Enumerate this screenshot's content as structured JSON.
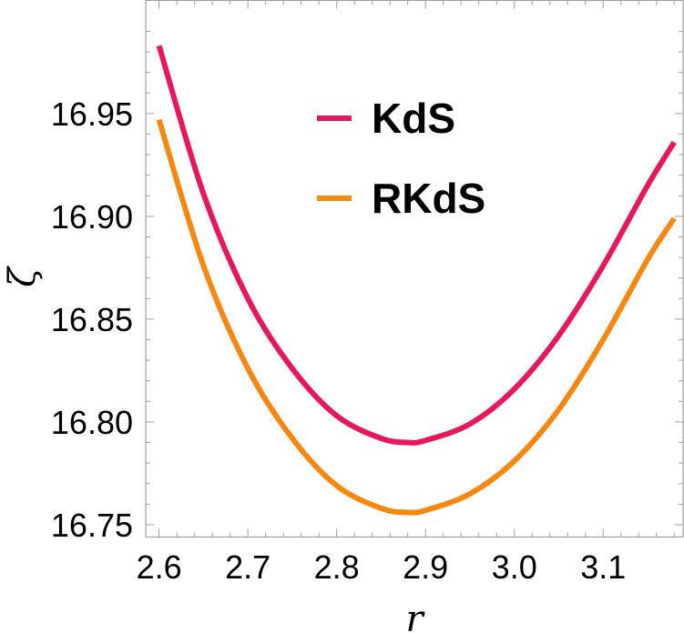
{
  "chart_data": {
    "type": "line",
    "title": "",
    "xlabel": "r",
    "ylabel": "ζ",
    "xlim": [
      2.585,
      3.19
    ],
    "ylim": [
      16.744,
      17.005
    ],
    "x_ticks": [
      "2.6",
      "2.7",
      "2.8",
      "2.9",
      "3.0",
      "3.1"
    ],
    "y_ticks": [
      "16.75",
      "16.80",
      "16.85",
      "16.90",
      "16.95"
    ],
    "legend_position": "top-center",
    "grid": false,
    "series": [
      {
        "name": "KdS",
        "color": "#e8175d",
        "x": [
          2.6,
          2.65,
          2.7,
          2.75,
          2.8,
          2.85,
          2.88,
          2.9,
          2.95,
          3.0,
          3.05,
          3.1,
          3.15,
          3.18
        ],
        "y": [
          16.983,
          16.911,
          16.86,
          16.826,
          16.803,
          16.792,
          16.79,
          16.791,
          16.799,
          16.816,
          16.842,
          16.876,
          16.915,
          16.936
        ]
      },
      {
        "name": "RKdS",
        "color": "#f7870f",
        "x": [
          2.6,
          2.65,
          2.7,
          2.75,
          2.8,
          2.85,
          2.88,
          2.9,
          2.95,
          3.0,
          3.05,
          3.1,
          3.15,
          3.18
        ],
        "y": [
          16.947,
          16.876,
          16.826,
          16.792,
          16.769,
          16.758,
          16.756,
          16.757,
          16.765,
          16.781,
          16.806,
          16.84,
          16.879,
          16.899
        ]
      }
    ]
  }
}
